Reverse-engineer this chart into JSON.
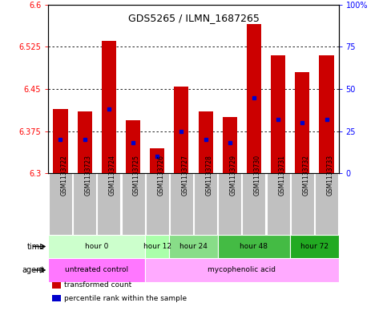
{
  "title": "GDS5265 / ILMN_1687265",
  "samples": [
    "GSM1133722",
    "GSM1133723",
    "GSM1133724",
    "GSM1133725",
    "GSM1133726",
    "GSM1133727",
    "GSM1133728",
    "GSM1133729",
    "GSM1133730",
    "GSM1133731",
    "GSM1133732",
    "GSM1133733"
  ],
  "transformed_counts": [
    6.415,
    6.41,
    6.535,
    6.395,
    6.345,
    6.455,
    6.41,
    6.4,
    6.565,
    6.51,
    6.48,
    6.51
  ],
  "percentile_ranks": [
    20,
    20,
    38,
    18,
    10,
    25,
    20,
    18,
    45,
    32,
    30,
    32
  ],
  "ymin": 6.3,
  "ymax": 6.6,
  "ytick_vals": [
    6.3,
    6.375,
    6.45,
    6.525,
    6.6
  ],
  "ytick_labels": [
    "6.3",
    "6.375",
    "6.45",
    "6.525",
    "6.6"
  ],
  "right_ytick_vals": [
    0,
    25,
    50,
    75,
    100
  ],
  "right_ytick_labels": [
    "0",
    "25",
    "50",
    "75",
    "100%"
  ],
  "bar_color": "#cc0000",
  "percentile_color": "#0000cc",
  "plot_bg": "#ffffff",
  "time_groups": [
    {
      "label": "hour 0",
      "start": 0,
      "end": 3,
      "color": "#ccffcc"
    },
    {
      "label": "hour 12",
      "start": 4,
      "end": 4,
      "color": "#aaffaa"
    },
    {
      "label": "hour 24",
      "start": 5,
      "end": 6,
      "color": "#88dd88"
    },
    {
      "label": "hour 48",
      "start": 7,
      "end": 9,
      "color": "#44bb44"
    },
    {
      "label": "hour 72",
      "start": 10,
      "end": 11,
      "color": "#22aa22"
    }
  ],
  "agent_groups": [
    {
      "label": "untreated control",
      "start": 0,
      "end": 3,
      "color": "#ff77ff"
    },
    {
      "label": "mycophenolic acid",
      "start": 4,
      "end": 11,
      "color": "#ffaaff"
    }
  ],
  "time_label": "time",
  "agent_label": "agent",
  "legend_items": [
    {
      "label": "transformed count",
      "color": "#cc0000"
    },
    {
      "label": "percentile rank within the sample",
      "color": "#0000cc"
    }
  ],
  "gray_box_color": "#c0c0c0",
  "bar_width": 0.6
}
